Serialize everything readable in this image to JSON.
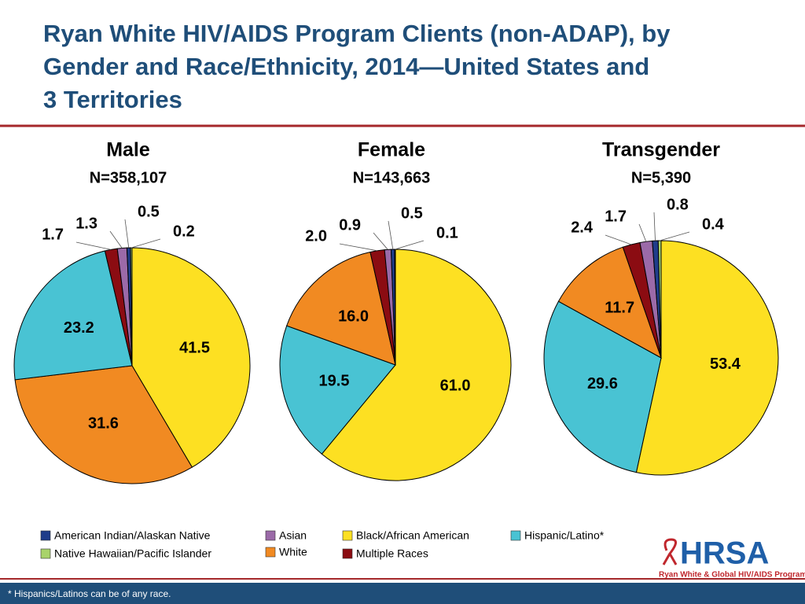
{
  "title": "Ryan White HIV/AIDS Program Clients (non-ADAP), by Gender and Race/Ethnicity, 2014—United States and 3 Territories",
  "legend": {
    "items": [
      {
        "name": "American Indian/Alaskan Native",
        "color": "#1f3d8a"
      },
      {
        "name": "Native Hawaiian/Pacific Islander",
        "color": "#a9d36b"
      },
      {
        "name": "Asian",
        "color": "#9b6aa8"
      },
      {
        "name": "White",
        "color": "#f18a22"
      },
      {
        "name": "Black/African American",
        "color": "#fde022"
      },
      {
        "name": "Multiple Races",
        "color": "#8b0c12"
      },
      {
        "name": "Hispanic/Latino*",
        "color": "#49c3d3"
      }
    ]
  },
  "chart_data": [
    {
      "type": "pie",
      "title": "Male",
      "subtitle": "N=358,107",
      "values": [
        41.5,
        31.6,
        23.2,
        1.7,
        1.3,
        0.5,
        0.2
      ],
      "value_labels": [
        "41.5",
        "31.6",
        "23.2",
        "1.7",
        "1.3",
        "0.5",
        "0.2"
      ],
      "colors": [
        "#fde022",
        "#f18a22",
        "#49c3d3",
        "#8b0c12",
        "#9b6aa8",
        "#1f3d8a",
        "#a9d36b"
      ]
    },
    {
      "type": "pie",
      "title": "Female",
      "subtitle": "N=143,663",
      "values": [
        61.0,
        19.5,
        16.0,
        2.0,
        0.9,
        0.5,
        0.1
      ],
      "value_labels": [
        "61.0",
        "19.5",
        "16.0",
        "2.0",
        "0.9",
        "0.5",
        "0.1"
      ],
      "colors": [
        "#fde022",
        "#49c3d3",
        "#f18a22",
        "#8b0c12",
        "#9b6aa8",
        "#1f3d8a",
        "#a9d36b"
      ]
    },
    {
      "type": "pie",
      "title": "Transgender",
      "subtitle": "N=5,390",
      "values": [
        53.4,
        29.6,
        11.7,
        2.4,
        1.7,
        0.8,
        0.4
      ],
      "value_labels": [
        "53.4",
        "29.6",
        "11.7",
        "2.4",
        "1.7",
        "0.8",
        "0.4"
      ],
      "colors": [
        "#fde022",
        "#49c3d3",
        "#f18a22",
        "#8b0c12",
        "#9b6aa8",
        "#1f3d8a",
        "#a9d36b"
      ]
    }
  ],
  "footnote": "* Hispanics/Latinos can be of any race.",
  "logo": {
    "name": "HRSA",
    "tagline": "Ryan White & Global HIV/AIDS Programs"
  }
}
